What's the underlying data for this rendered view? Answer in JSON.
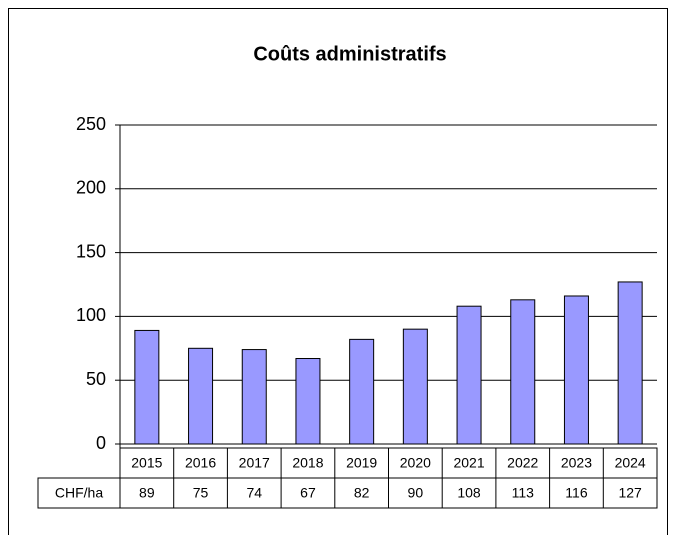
{
  "chart_data": {
    "type": "bar",
    "title": "Coûts administratifs",
    "categories": [
      "2015",
      "2016",
      "2017",
      "2018",
      "2019",
      "2020",
      "2021",
      "2022",
      "2023",
      "2024"
    ],
    "series": [
      {
        "name": "CHF/ha",
        "color": "#9999ff",
        "values": [
          89,
          75,
          74,
          67,
          82,
          90,
          108,
          113,
          116,
          127
        ]
      }
    ],
    "ylim": [
      0,
      250
    ],
    "yticks": [
      0,
      50,
      100,
      150,
      200,
      250
    ],
    "grid": true,
    "data_table": true
  }
}
